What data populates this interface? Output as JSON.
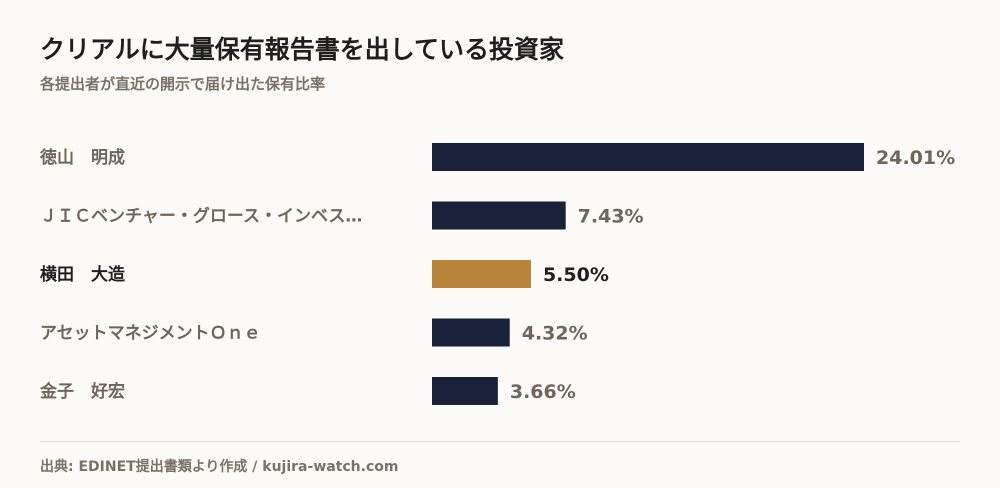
{
  "header": {
    "title": "クリアルに大量保有報告書を出している投資家",
    "subtitle": "各提出者が直近の開示で届け出た保有比率"
  },
  "footer": {
    "source": "出典: EDINET提出書類より作成 / kujira-watch.com"
  },
  "colors": {
    "bar": "#1a223b",
    "highlight": "#b8843a",
    "label": "#6e665c",
    "highlight_label": "#1f1f1f"
  },
  "chart_data": {
    "type": "bar",
    "orientation": "horizontal",
    "title": "クリアルに大量保有報告書を出している投資家",
    "subtitle": "各提出者が直近の開示で届け出た保有比率",
    "categories": [
      "徳山　明成",
      "ＪＩＣベンチャー・グロース・インベス…",
      "横田　大造",
      "アセットマネジメントＯｎｅ",
      "金子　好宏"
    ],
    "values": [
      24.01,
      7.43,
      5.5,
      4.32,
      3.66
    ],
    "value_labels": [
      "24.01%",
      "7.43%",
      "5.50%",
      "4.32%",
      "3.66%"
    ],
    "highlight_index": 2,
    "xlim": [
      0,
      24.01
    ],
    "grid": false
  }
}
